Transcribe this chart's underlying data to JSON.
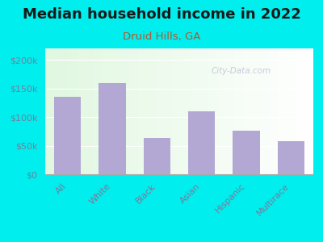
{
  "title": "Median household income in 2022",
  "subtitle": "Druid Hills, GA",
  "categories": [
    "All",
    "White",
    "Black",
    "Asian",
    "Hispanic",
    "Multirace"
  ],
  "values": [
    136000,
    160000,
    63000,
    110000,
    76000,
    58000
  ],
  "bar_color": "#b3a8d4",
  "background_outer": "#00eeee",
  "title_color": "#1a1a1a",
  "subtitle_color": "#b05a2f",
  "tick_label_color": "#7a7a9a",
  "ylim": [
    0,
    220000
  ],
  "yticks": [
    0,
    50000,
    100000,
    150000,
    200000
  ],
  "ytick_labels": [
    "$0",
    "$50k",
    "$100k",
    "$150k",
    "$200k"
  ],
  "watermark": "City-Data.com",
  "title_fontsize": 13,
  "subtitle_fontsize": 9.5,
  "tick_fontsize": 8
}
